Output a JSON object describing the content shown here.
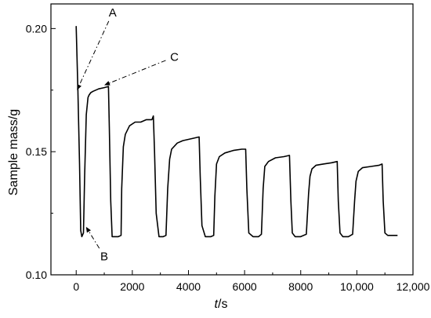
{
  "chart_data": {
    "type": "line",
    "title": "",
    "xlabel_italic": "t",
    "xlabel_unit": "/s",
    "ylabel": "Sample mass/g",
    "xlim": [
      -900,
      12000
    ],
    "ylim": [
      0.1,
      0.21
    ],
    "xticks": [
      0,
      2000,
      4000,
      6000,
      8000,
      10000,
      12000
    ],
    "xtick_labels": [
      "0",
      "2000",
      "4000",
      "6000",
      "8000",
      "10,000",
      "12,000"
    ],
    "yticks": [
      0.1,
      0.15,
      0.2
    ],
    "ytick_labels": [
      "0.10",
      "0.15",
      "0.20"
    ],
    "series": [
      {
        "color": "#000000",
        "x": [
          0,
          60,
          120,
          160,
          200,
          260,
          300,
          360,
          420,
          460,
          520,
          600,
          800,
          1000,
          1150,
          1180,
          1230,
          1280,
          1400,
          1500,
          1600,
          1620,
          1680,
          1750,
          1900,
          2100,
          2300,
          2500,
          2700,
          2750,
          2790,
          2850,
          2950,
          3100,
          3200,
          3260,
          3330,
          3400,
          3600,
          3800,
          4000,
          4200,
          4380,
          4420,
          4480,
          4600,
          4800,
          4900,
          4940,
          5000,
          5100,
          5300,
          5600,
          5900,
          6040,
          6080,
          6150,
          6300,
          6500,
          6600,
          6660,
          6720,
          6850,
          7100,
          7400,
          7600,
          7650,
          7700,
          7800,
          8000,
          8200,
          8280,
          8330,
          8400,
          8550,
          8800,
          9100,
          9300,
          9340,
          9400,
          9500,
          9700,
          9850,
          9920,
          9970,
          10050,
          10200,
          10500,
          10800,
          10900,
          10940,
          11000,
          11100,
          11250,
          11450
        ],
        "y": [
          0.201,
          0.175,
          0.145,
          0.118,
          0.1155,
          0.117,
          0.14,
          0.165,
          0.172,
          0.173,
          0.174,
          0.1745,
          0.1755,
          0.176,
          0.1765,
          0.16,
          0.13,
          0.1155,
          0.1155,
          0.1155,
          0.116,
          0.135,
          0.152,
          0.157,
          0.1605,
          0.162,
          0.162,
          0.163,
          0.163,
          0.1645,
          0.15,
          0.125,
          0.1155,
          0.1155,
          0.116,
          0.135,
          0.147,
          0.151,
          0.1535,
          0.1545,
          0.155,
          0.1555,
          0.156,
          0.14,
          0.12,
          0.1155,
          0.1155,
          0.116,
          0.132,
          0.145,
          0.148,
          0.1495,
          0.1505,
          0.151,
          0.151,
          0.135,
          0.117,
          0.1155,
          0.1155,
          0.1165,
          0.135,
          0.144,
          0.146,
          0.1475,
          0.148,
          0.1485,
          0.13,
          0.117,
          0.1155,
          0.1155,
          0.1165,
          0.133,
          0.14,
          0.143,
          0.1445,
          0.145,
          0.1455,
          0.146,
          0.13,
          0.117,
          0.1155,
          0.1155,
          0.1165,
          0.13,
          0.138,
          0.142,
          0.1435,
          0.144,
          0.1445,
          0.145,
          0.13,
          0.117,
          0.116,
          0.116,
          0.116
        ]
      }
    ],
    "annotations": [
      {
        "label": "A",
        "point_x": 30,
        "point_y": 0.175,
        "text_x": 1300,
        "text_y": 0.2065
      },
      {
        "label": "B",
        "point_x": 350,
        "point_y": 0.1195,
        "text_x": 1000,
        "text_y": 0.1075
      },
      {
        "label": "C",
        "point_x": 1000,
        "point_y": 0.177,
        "text_x": 3500,
        "text_y": 0.1885
      }
    ]
  }
}
